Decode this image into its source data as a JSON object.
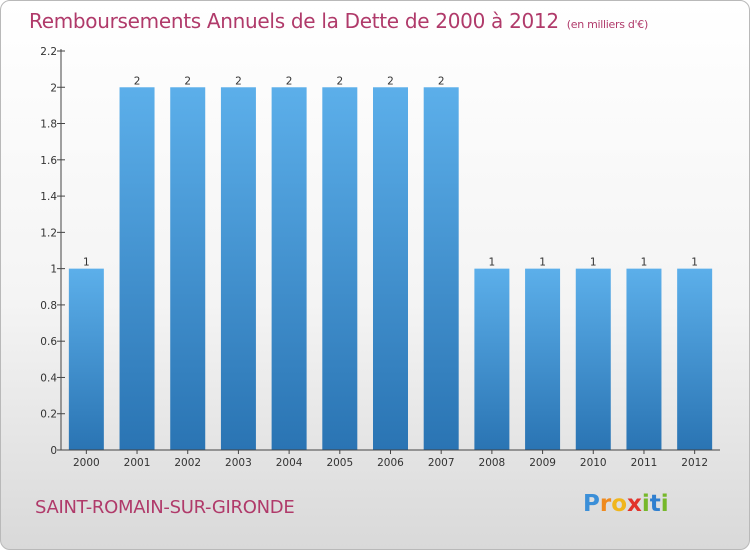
{
  "title": "Remboursements Annuels de la Dette de 2000 à 2012",
  "unit": "(en milliers d'€)",
  "commune": "SAINT-ROMAIN-SUR-GIRONDE",
  "logo": {
    "text": "Proxiti"
  },
  "colors": {
    "bar_light": "#5cafea",
    "bar_dark": "#2a74b3",
    "title": "#b03a6a",
    "axis": "#444444"
  },
  "chart_data": {
    "type": "bar",
    "title": "Remboursements Annuels de la Dette de 2000 à 2012",
    "subtitle": "(en milliers d'€)",
    "xlabel": "",
    "ylabel": "",
    "categories": [
      "2000",
      "2001",
      "2002",
      "2003",
      "2004",
      "2005",
      "2006",
      "2007",
      "2008",
      "2009",
      "2010",
      "2011",
      "2012"
    ],
    "values": [
      1,
      2,
      2,
      2,
      2,
      2,
      2,
      2,
      1,
      1,
      1,
      1,
      1
    ],
    "data_labels": [
      "1",
      "2",
      "2",
      "2",
      "2",
      "2",
      "2",
      "2",
      "1",
      "1",
      "1",
      "1",
      "1"
    ],
    "yticks": [
      "0",
      "0.2",
      "0.4",
      "0.6",
      "0.8",
      "1",
      "1.2",
      "1.4",
      "1.6",
      "1.8",
      "2",
      "2.2"
    ],
    "ylim": [
      0,
      2.2
    ],
    "grid": false,
    "legend": "none"
  }
}
